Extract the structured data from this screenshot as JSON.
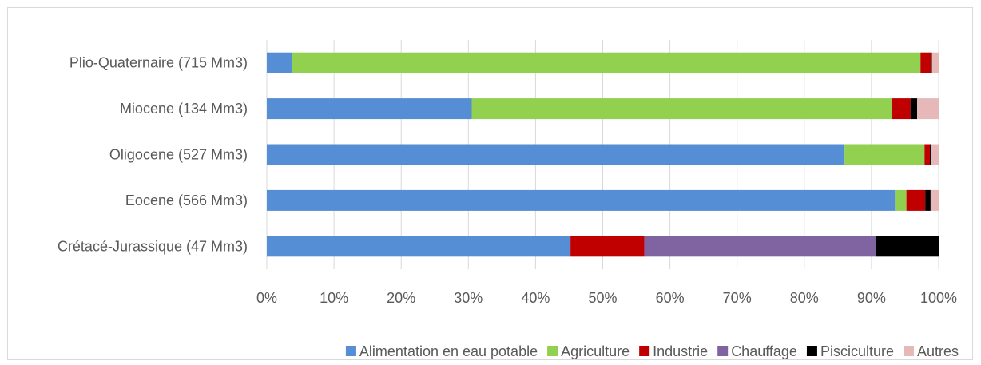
{
  "chart_data": {
    "type": "bar",
    "orientation": "horizontal",
    "stacked": "percent",
    "categories": [
      "Plio-Quaternaire  (715 Mm3)",
      "Miocene (134 Mm3)",
      "Oligocene (527 Mm3)",
      "Eocene (566 Mm3)",
      "Crétacé-Jurassique (47 Mm3)"
    ],
    "series": [
      {
        "name": "Alimentation en eau potable",
        "color": "#558ED5",
        "values": [
          3.8,
          30.5,
          86.0,
          93.5,
          45.2
        ]
      },
      {
        "name": "Agriculture",
        "color": "#92D050",
        "values": [
          93.5,
          62.5,
          11.9,
          1.7,
          0
        ]
      },
      {
        "name": "Industrie",
        "color": "#C00000",
        "values": [
          1.6,
          2.8,
          0.8,
          2.8,
          11.0
        ]
      },
      {
        "name": "Chauffage",
        "color": "#8064A2",
        "values": [
          0,
          0,
          0,
          0,
          34.5
        ]
      },
      {
        "name": "Pisciculture",
        "color": "#000000",
        "values": [
          0.1,
          1.0,
          0.2,
          0.8,
          9.3
        ]
      },
      {
        "name": "Autres",
        "color": "#E6B9B8",
        "values": [
          1.0,
          3.2,
          1.1,
          1.2,
          0
        ]
      }
    ],
    "xaxis": {
      "ticks": [
        0,
        10,
        20,
        30,
        40,
        50,
        60,
        70,
        80,
        90,
        100
      ],
      "tick_labels": [
        "0%",
        "10%",
        "20%",
        "30%",
        "40%",
        "50%",
        "60%",
        "70%",
        "80%",
        "90%",
        "100%"
      ],
      "xlim": [
        0,
        100
      ]
    },
    "grid": true,
    "legend_position": "bottom",
    "colors": {
      "gridline": "#D9D9D9",
      "text": "#595959"
    }
  }
}
